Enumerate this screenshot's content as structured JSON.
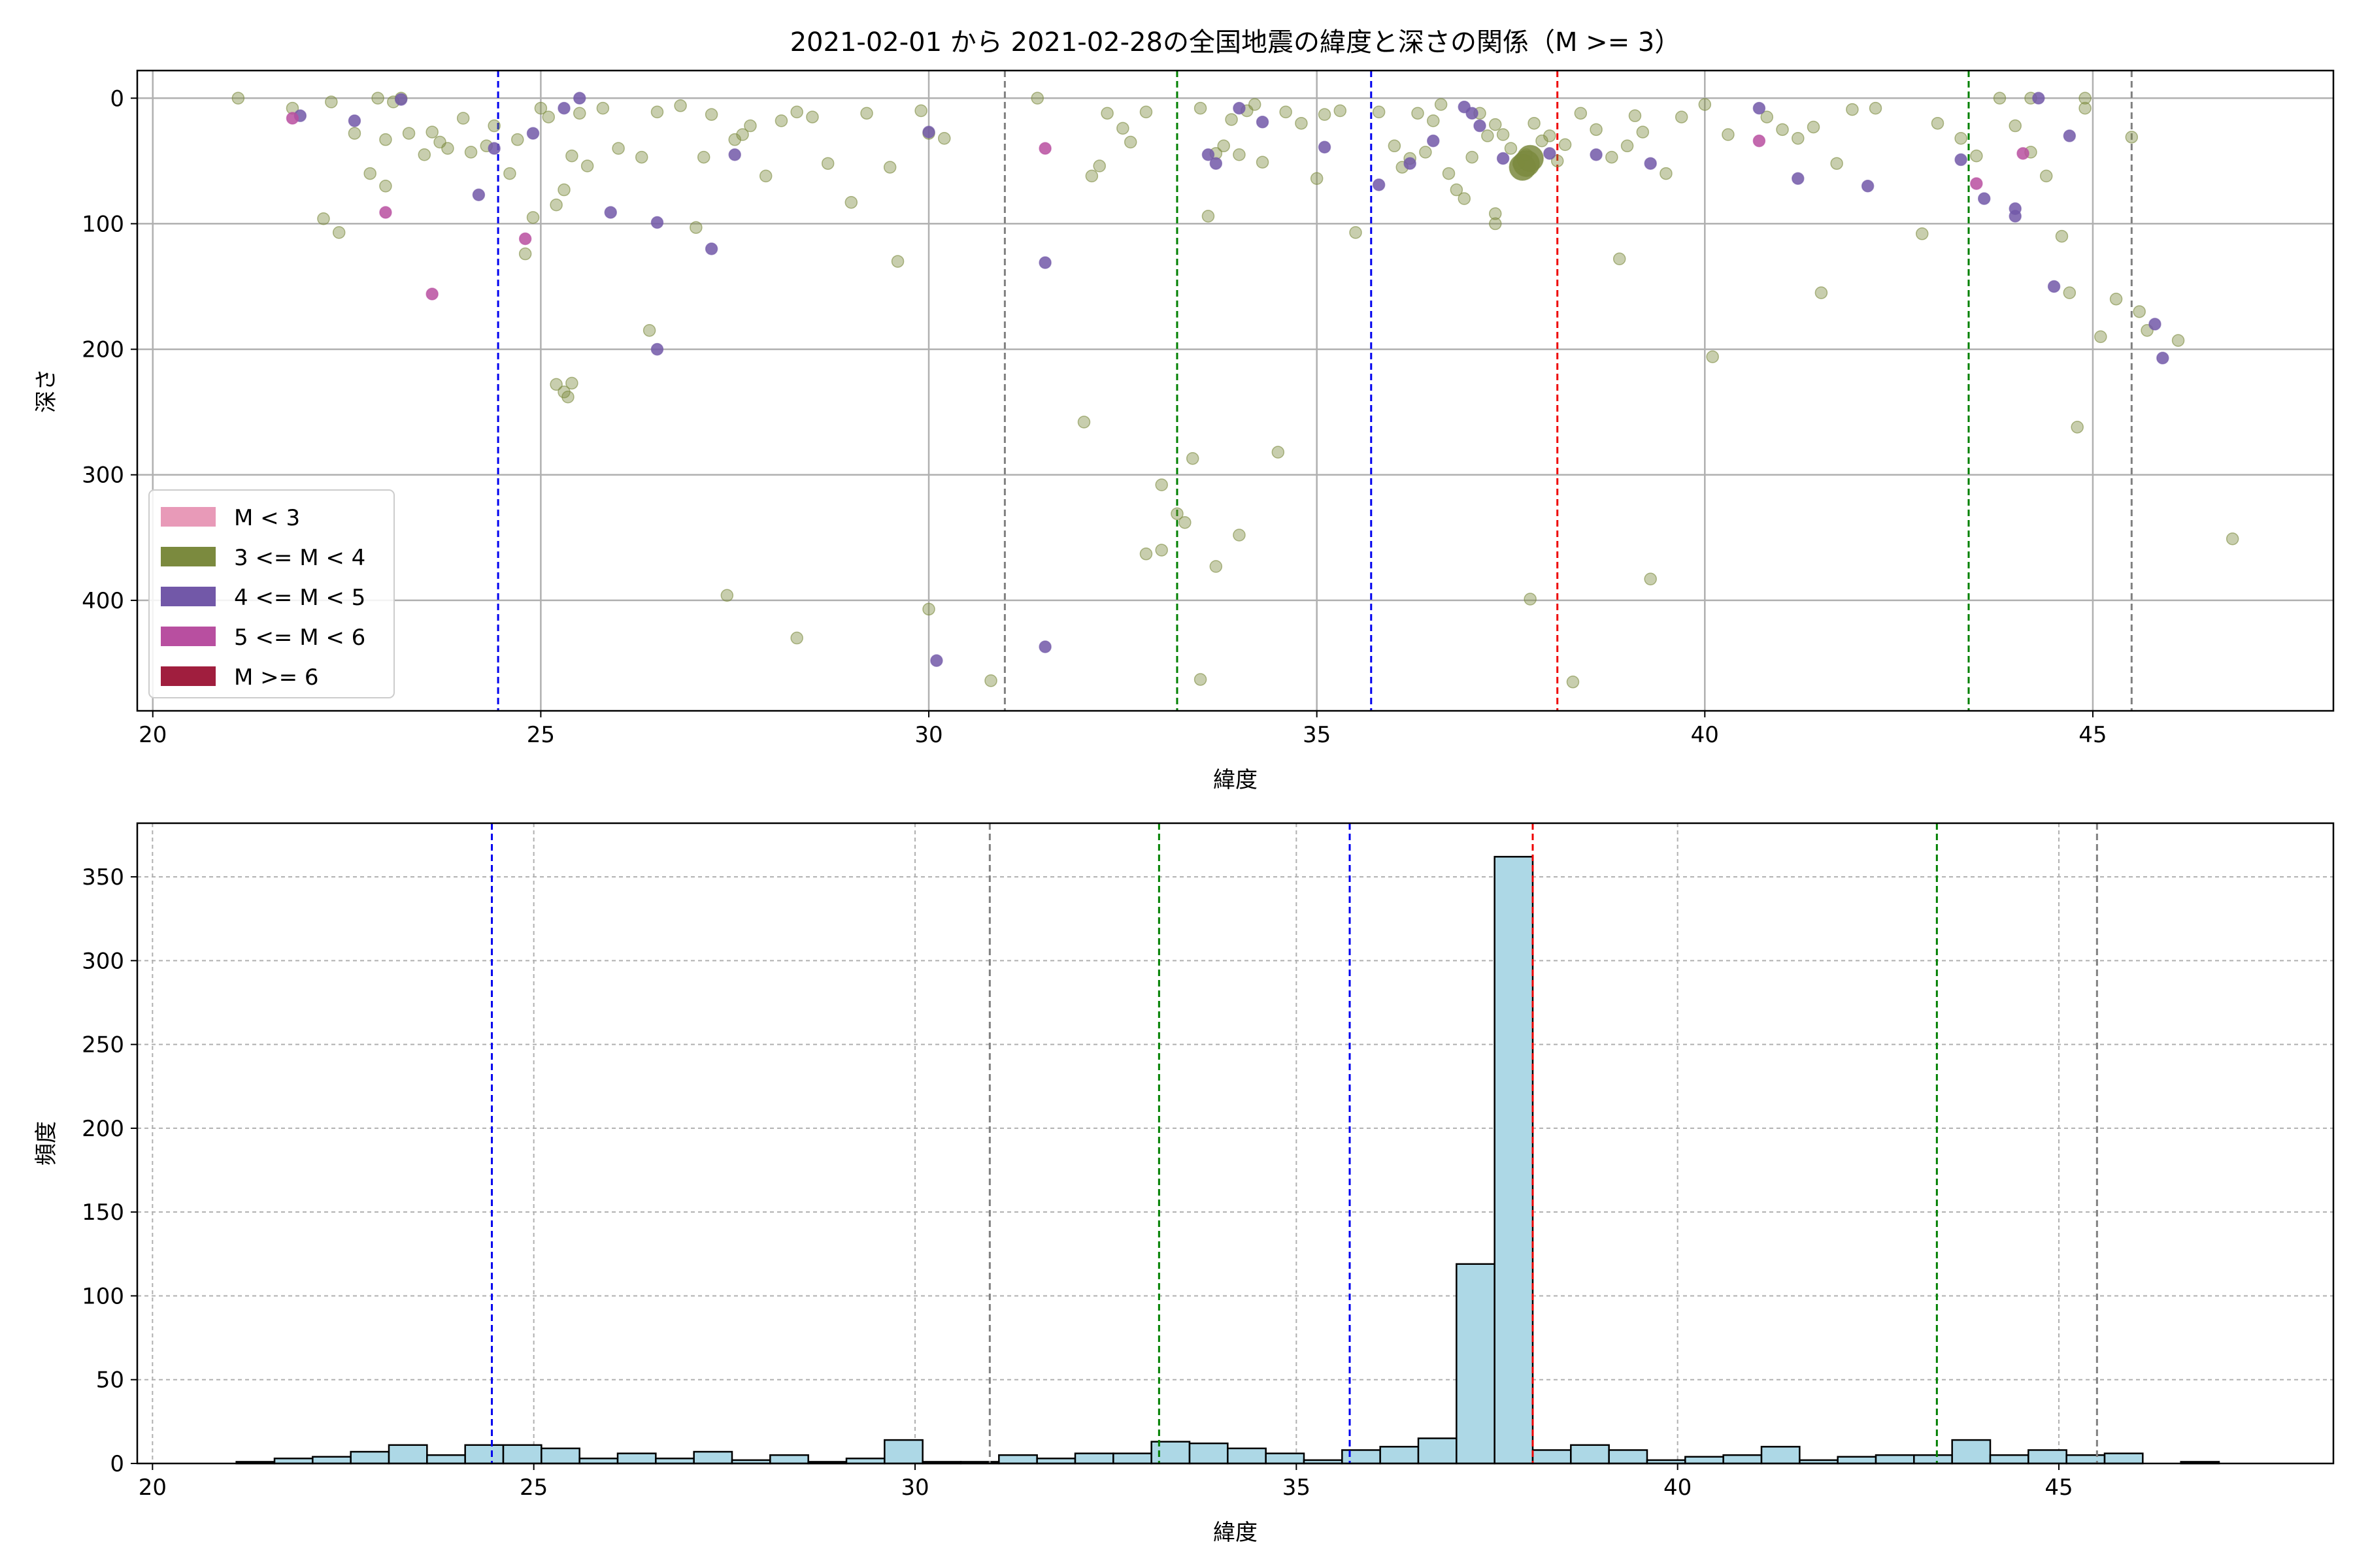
{
  "title": "2021-02-01 から 2021-02-28の全国地震の緯度と深さの関係（M >= 3）",
  "chart_data": [
    {
      "type": "scatter",
      "xlabel": "緯度",
      "ylabel": "深さ",
      "xlim": [
        19.8,
        48.1
      ],
      "ylim": [
        488,
        -22
      ],
      "y_inverted": true,
      "xticks": [
        20,
        25,
        30,
        35,
        40,
        45
      ],
      "yticks": [
        0,
        100,
        200,
        300,
        400
      ],
      "grid": true,
      "legend_position": "lower-left",
      "legend": [
        {
          "label": "M < 3",
          "color": "#e89ab8"
        },
        {
          "label": "3 <= M < 4",
          "color": "#7b8a3e"
        },
        {
          "label": "4 <= M < 5",
          "color": "#7258a8"
        },
        {
          "label": "5 <= M < 6",
          "color": "#b84fa0"
        },
        {
          "label": "M >= 6",
          "color": "#a01e3e"
        }
      ],
      "vlines": [
        {
          "x": 24.45,
          "color": "#0000ee"
        },
        {
          "x": 30.98,
          "color": "#808080"
        },
        {
          "x": 33.2,
          "color": "#008000"
        },
        {
          "x": 35.7,
          "color": "#0000ee"
        },
        {
          "x": 38.1,
          "color": "#ee0000"
        },
        {
          "x": 43.4,
          "color": "#008000"
        },
        {
          "x": 45.5,
          "color": "#808080"
        }
      ],
      "series": [
        {
          "class": "3 <= M < 4",
          "color": "#7b8a3e",
          "points": [
            [
              21.1,
              0
            ],
            [
              21.8,
              8
            ],
            [
              22.3,
              3
            ],
            [
              22.4,
              107
            ],
            [
              22.6,
              28
            ],
            [
              22.8,
              60
            ],
            [
              22.9,
              0
            ],
            [
              23.0,
              33
            ],
            [
              23.0,
              70
            ],
            [
              23.1,
              3
            ],
            [
              23.2,
              0
            ],
            [
              23.3,
              28
            ],
            [
              23.5,
              45
            ],
            [
              23.6,
              27
            ],
            [
              23.7,
              35
            ],
            [
              23.8,
              40
            ],
            [
              24.0,
              16
            ],
            [
              24.1,
              43
            ],
            [
              24.3,
              38
            ],
            [
              24.4,
              22
            ],
            [
              24.6,
              60
            ],
            [
              24.7,
              33
            ],
            [
              24.8,
              124
            ],
            [
              24.9,
              95
            ],
            [
              25.0,
              8
            ],
            [
              25.1,
              15
            ],
            [
              25.2,
              85
            ],
            [
              25.3,
              73
            ],
            [
              25.4,
              46
            ],
            [
              25.5,
              12
            ],
            [
              25.6,
              54
            ],
            [
              25.8,
              8
            ],
            [
              26.0,
              40
            ],
            [
              26.3,
              47
            ],
            [
              26.4,
              185
            ],
            [
              26.5,
              11
            ],
            [
              26.8,
              6
            ],
            [
              27.0,
              103
            ],
            [
              27.1,
              47
            ],
            [
              27.2,
              13
            ],
            [
              27.5,
              33
            ],
            [
              27.6,
              29
            ],
            [
              27.7,
              22
            ],
            [
              27.9,
              62
            ],
            [
              28.1,
              18
            ],
            [
              28.3,
              11
            ],
            [
              28.5,
              15
            ],
            [
              28.7,
              52
            ],
            [
              29.0,
              83
            ],
            [
              29.2,
              12
            ],
            [
              29.5,
              55
            ],
            [
              29.6,
              130
            ],
            [
              29.9,
              10
            ],
            [
              30.0,
              28
            ],
            [
              30.2,
              32
            ],
            [
              22.2,
              96
            ],
            [
              25.2,
              228
            ],
            [
              25.3,
              234
            ],
            [
              25.4,
              227
            ],
            [
              25.35,
              238
            ],
            [
              27.4,
              396
            ],
            [
              28.3,
              430
            ],
            [
              30.0,
              407
            ],
            [
              30.8,
              464
            ],
            [
              31.4,
              0
            ],
            [
              32.0,
              258
            ],
            [
              32.1,
              62
            ],
            [
              32.2,
              54
            ],
            [
              32.3,
              12
            ],
            [
              32.5,
              24
            ],
            [
              32.6,
              35
            ],
            [
              32.8,
              11
            ],
            [
              32.8,
              363
            ],
            [
              33.0,
              360
            ],
            [
              33.2,
              331
            ],
            [
              33.3,
              338
            ],
            [
              33.4,
              287
            ],
            [
              33.5,
              8
            ],
            [
              33.6,
              94
            ],
            [
              33.7,
              44
            ],
            [
              33.8,
              38
            ],
            [
              33.9,
              17
            ],
            [
              34.0,
              45
            ],
            [
              34.1,
              10
            ],
            [
              34.2,
              5
            ],
            [
              34.3,
              51
            ],
            [
              34.5,
              282
            ],
            [
              34.6,
              11
            ],
            [
              34.8,
              20
            ],
            [
              35.0,
              64
            ],
            [
              35.1,
              13
            ],
            [
              35.3,
              10
            ],
            [
              35.5,
              107
            ],
            [
              33.0,
              308
            ],
            [
              33.7,
              373
            ],
            [
              34.0,
              348
            ],
            [
              33.5,
              463
            ],
            [
              35.8,
              11
            ],
            [
              36.0,
              38
            ],
            [
              36.1,
              55
            ],
            [
              36.2,
              48
            ],
            [
              36.3,
              12
            ],
            [
              36.4,
              43
            ],
            [
              36.5,
              18
            ],
            [
              36.6,
              5
            ],
            [
              36.7,
              60
            ],
            [
              36.8,
              73
            ],
            [
              36.9,
              80
            ],
            [
              37.0,
              47
            ],
            [
              37.1,
              12
            ],
            [
              37.2,
              30
            ],
            [
              37.3,
              21
            ],
            [
              37.4,
              29
            ],
            [
              37.5,
              40
            ],
            [
              37.6,
              52
            ],
            [
              37.7,
              45
            ],
            [
              37.8,
              20
            ],
            [
              37.9,
              34
            ],
            [
              38.0,
              30
            ],
            [
              38.1,
              50
            ],
            [
              38.2,
              37
            ],
            [
              37.3,
              92
            ],
            [
              37.3,
              100
            ],
            [
              37.75,
              399
            ],
            [
              38.3,
              465
            ],
            [
              38.4,
              12
            ],
            [
              38.6,
              25
            ],
            [
              38.8,
              47
            ],
            [
              38.9,
              128
            ],
            [
              39.0,
              38
            ],
            [
              39.1,
              14
            ],
            [
              39.2,
              27
            ],
            [
              39.3,
              383
            ],
            [
              39.5,
              60
            ],
            [
              39.7,
              15
            ],
            [
              40.0,
              5
            ],
            [
              40.1,
              206
            ],
            [
              40.3,
              29
            ],
            [
              40.8,
              15
            ],
            [
              41.0,
              25
            ],
            [
              41.2,
              32
            ],
            [
              41.4,
              23
            ],
            [
              41.5,
              155
            ],
            [
              41.7,
              52
            ],
            [
              41.9,
              9
            ],
            [
              42.2,
              8
            ],
            [
              42.8,
              108
            ],
            [
              43.0,
              20
            ],
            [
              43.3,
              32
            ],
            [
              43.5,
              46
            ],
            [
              43.8,
              0
            ],
            [
              44.0,
              22
            ],
            [
              44.2,
              0
            ],
            [
              44.4,
              62
            ],
            [
              44.6,
              110
            ],
            [
              44.7,
              155
            ],
            [
              44.8,
              262
            ],
            [
              44.9,
              8
            ],
            [
              45.1,
              190
            ],
            [
              45.3,
              160
            ],
            [
              45.6,
              170
            ],
            [
              45.7,
              185
            ],
            [
              46.1,
              193
            ],
            [
              46.8,
              351
            ],
            [
              44.9,
              0
            ],
            [
              45.5,
              31
            ],
            [
              44.2,
              43
            ]
          ]
        },
        {
          "class": "4 <= M < 5",
          "color": "#7258a8",
          "points": [
            [
              21.9,
              14
            ],
            [
              22.6,
              18
            ],
            [
              23.2,
              1
            ],
            [
              24.2,
              77
            ],
            [
              24.4,
              40
            ],
            [
              24.9,
              28
            ],
            [
              25.3,
              8
            ],
            [
              25.5,
              0
            ],
            [
              25.9,
              91
            ],
            [
              26.5,
              99
            ],
            [
              26.5,
              200
            ],
            [
              27.2,
              120
            ],
            [
              27.5,
              45
            ],
            [
              30.0,
              27
            ],
            [
              30.1,
              448
            ],
            [
              31.5,
              131
            ],
            [
              31.5,
              437
            ],
            [
              33.6,
              45
            ],
            [
              33.7,
              52
            ],
            [
              34.0,
              8
            ],
            [
              34.3,
              19
            ],
            [
              35.1,
              39
            ],
            [
              35.8,
              69
            ],
            [
              36.2,
              52
            ],
            [
              36.5,
              34
            ],
            [
              36.9,
              7
            ],
            [
              37.0,
              12
            ],
            [
              37.1,
              22
            ],
            [
              37.4,
              48
            ],
            [
              38.0,
              44
            ],
            [
              38.6,
              45
            ],
            [
              39.3,
              52
            ],
            [
              40.7,
              8
            ],
            [
              41.2,
              64
            ],
            [
              42.1,
              70
            ],
            [
              43.3,
              49
            ],
            [
              43.6,
              80
            ],
            [
              44.0,
              88
            ],
            [
              44.0,
              94
            ],
            [
              44.3,
              0
            ],
            [
              44.5,
              150
            ],
            [
              44.7,
              30
            ],
            [
              45.8,
              180
            ],
            [
              45.9,
              207
            ]
          ]
        },
        {
          "class": "5 <= M < 6",
          "color": "#b84fa0",
          "points": [
            [
              21.8,
              16
            ],
            [
              23.0,
              91
            ],
            [
              23.6,
              156
            ],
            [
              24.8,
              112
            ],
            [
              31.5,
              40
            ],
            [
              40.7,
              34
            ],
            [
              43.5,
              68
            ],
            [
              44.1,
              44
            ]
          ]
        },
        {
          "class": "large",
          "color": "#7b8a3e",
          "points": [
            [
              37.7,
              52
            ],
            [
              37.65,
              55
            ],
            [
              37.75,
              48
            ]
          ]
        }
      ]
    },
    {
      "type": "histogram",
      "xlabel": "緯度",
      "ylabel": "頻度",
      "xlim": [
        19.8,
        48.6
      ],
      "ylim": [
        0,
        382
      ],
      "xticks": [
        20,
        25,
        30,
        35,
        40,
        45
      ],
      "yticks": [
        0,
        50,
        100,
        150,
        200,
        250,
        300,
        350
      ],
      "grid": true,
      "bar_color": "#add8e6",
      "bin_start": 21.1,
      "bin_width": 0.5,
      "values": [
        1,
        3,
        4,
        7,
        11,
        5,
        11,
        11,
        9,
        3,
        6,
        3,
        7,
        2,
        5,
        1,
        3,
        14,
        1,
        1,
        5,
        3,
        6,
        6,
        13,
        12,
        9,
        6,
        2,
        8,
        10,
        15,
        119,
        362,
        8,
        11,
        8,
        2,
        4,
        5,
        10,
        2,
        4,
        5,
        5,
        14,
        5,
        8,
        5,
        6,
        0,
        1
      ],
      "vlines": [
        {
          "x": 24.45,
          "color": "#0000ee"
        },
        {
          "x": 30.98,
          "color": "#808080"
        },
        {
          "x": 33.2,
          "color": "#008000"
        },
        {
          "x": 35.7,
          "color": "#0000ee"
        },
        {
          "x": 38.1,
          "color": "#ee0000"
        },
        {
          "x": 43.4,
          "color": "#008000"
        },
        {
          "x": 45.5,
          "color": "#808080"
        }
      ]
    }
  ]
}
